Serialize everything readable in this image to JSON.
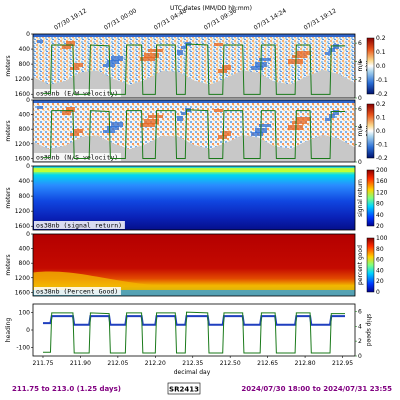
{
  "header": {
    "title": "UTC dates (MM/DD hh:mm)"
  },
  "top_ticks": [
    "07/30 19:12",
    "07/31 00:00",
    "07/31 04:48",
    "07/31 09:36",
    "07/31 14:24",
    "07/31 19:12"
  ],
  "top_tick_x": [
    211.8,
    212.0,
    212.2,
    212.4,
    212.6,
    212.8
  ],
  "x_ticks": [
    "211.75",
    "211.90",
    "212.05",
    "212.20",
    "212.35",
    "212.50",
    "212.65",
    "212.80",
    "212.95"
  ],
  "x_tick_vals": [
    211.75,
    211.9,
    212.05,
    212.2,
    212.35,
    212.5,
    212.65,
    212.8,
    212.95
  ],
  "x_label": "decimal day",
  "x_range": [
    211.71,
    213.0
  ],
  "depth_ticks": [
    "0",
    "400",
    "800",
    "1200",
    "1600"
  ],
  "depth_label": "meters",
  "speed_ticks": [
    "0",
    "2",
    "4",
    "6"
  ],
  "speed_label": "m/s",
  "panels": [
    {
      "name": "os38nb (E/W velocity)",
      "cbar_ticks": [
        "0.2",
        "0.1",
        "0.0",
        "-0.1",
        "-0.2"
      ],
      "cbar_label": "m/s",
      "cmap": "div",
      "has_speed": true
    },
    {
      "name": "os38nb (N/S velocity)",
      "cbar_ticks": [
        "0.2",
        "0.1",
        "0.0",
        "-0.1",
        "-0.2"
      ],
      "cbar_label": "m/s",
      "cmap": "div",
      "has_speed": true
    },
    {
      "name": "os38nb (signal return)",
      "cbar_ticks": [
        "200",
        "160",
        "120",
        "80",
        "40",
        "20"
      ],
      "cbar_label": "signal return",
      "cmap": "jet",
      "has_speed": false
    },
    {
      "name": "os38nb (Percent Good)",
      "cbar_ticks": [
        "100",
        "80",
        "60",
        "40",
        "20",
        "0"
      ],
      "cbar_label": "percent good",
      "cmap": "jet",
      "has_speed": false
    }
  ],
  "heading_panel": {
    "ylabel_left": "heading",
    "left_ticks": [
      "100",
      "0",
      "-100"
    ],
    "ylabel_right": "ship speed",
    "right_ticks": [
      "6",
      "4",
      "2",
      "0"
    ]
  },
  "footer": {
    "range": "211.75 to 213.0 (1.25 days)",
    "cruise": "SR2413",
    "dates": "2024/07/30 18:00 to 2024/07/31 23:55"
  },
  "colors": {
    "range_text": "#800080",
    "dates_text": "#800080",
    "speed_line": "#1a7a1a",
    "heading_line": "#1f3fbf",
    "nodata": "#c8c8c8"
  },
  "chart_data": {
    "type": "line",
    "x_label": "decimal day",
    "series": [
      {
        "name": "ship speed",
        "x": [
          211.75,
          211.78,
          211.785,
          211.87,
          211.875,
          211.935,
          211.94,
          212.015,
          212.02,
          212.08,
          212.085,
          212.145,
          212.15,
          212.2,
          212.205,
          212.28,
          212.285,
          212.32,
          212.325,
          212.41,
          212.415,
          212.47,
          212.475,
          212.55,
          212.555,
          212.62,
          212.625,
          212.68,
          212.685,
          212.76,
          212.765,
          212.82,
          212.825,
          212.9,
          212.905,
          212.96
        ],
        "y": [
          0.5,
          0.5,
          5.8,
          5.8,
          0.4,
          0.4,
          5.8,
          5.7,
          0.4,
          0.4,
          5.8,
          5.8,
          0.4,
          0.4,
          5.8,
          5.8,
          0.4,
          0.4,
          5.9,
          5.8,
          0.4,
          0.4,
          5.8,
          5.8,
          0.4,
          0.4,
          5.8,
          5.8,
          0.4,
          0.4,
          5.8,
          5.8,
          0.4,
          0.4,
          5.7,
          5.7
        ]
      },
      {
        "name": "heading",
        "x": [
          211.75,
          211.78,
          211.785,
          211.87,
          211.875,
          211.935,
          211.94,
          212.015,
          212.02,
          212.08,
          212.085,
          212.145,
          212.15,
          212.2,
          212.205,
          212.28,
          212.285,
          212.32,
          212.325,
          212.41,
          212.415,
          212.47,
          212.475,
          212.55,
          212.555,
          212.62,
          212.625,
          212.68,
          212.685,
          212.76,
          212.765,
          212.82,
          212.825,
          212.9,
          212.905,
          212.96
        ],
        "y": [
          40,
          40,
          80,
          80,
          30,
          30,
          80,
          80,
          30,
          30,
          80,
          80,
          30,
          30,
          80,
          80,
          30,
          30,
          80,
          80,
          30,
          30,
          80,
          80,
          30,
          30,
          80,
          80,
          30,
          30,
          80,
          80,
          30,
          30,
          80,
          80
        ]
      }
    ],
    "speed_ylim": [
      0,
      7
    ],
    "heading_ylim": [
      -150,
      150
    ],
    "depth_ylim": [
      0,
      1700
    ]
  }
}
